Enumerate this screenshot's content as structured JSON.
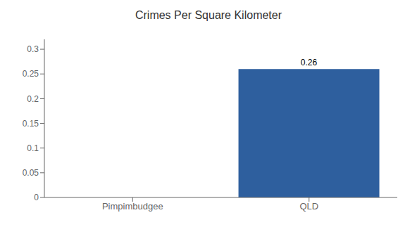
{
  "chart_data": {
    "type": "bar",
    "title": "Crimes Per Square Kilometer",
    "categories": [
      "Pimpimbudgee",
      "QLD"
    ],
    "values": [
      0,
      0.26
    ],
    "colors": [
      "#2e5f9e",
      "#2e5f9e"
    ],
    "ylim": [
      0,
      0.32
    ],
    "yticks": [
      0,
      0.05,
      0.1,
      0.15,
      0.2,
      0.25,
      0.3
    ],
    "grid": false,
    "data_labels": true
  }
}
